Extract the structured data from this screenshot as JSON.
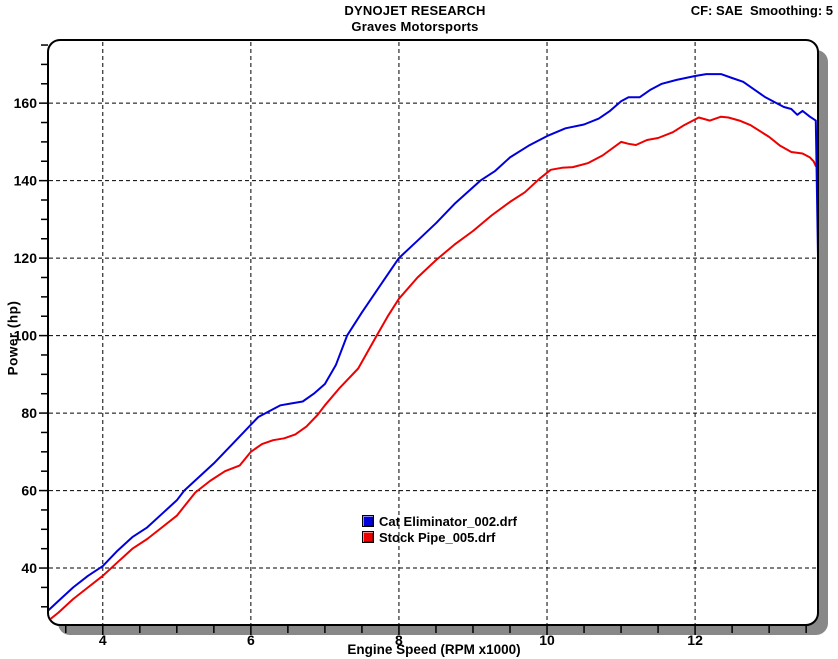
{
  "header": {
    "title": "DYNOJET RESEARCH",
    "subtitle": "Graves Motorsports",
    "correction_note": "CF: SAE  Smoothing: 5"
  },
  "chart_data": {
    "type": "line",
    "title": "DYNOJET RESEARCH",
    "subtitle": "Graves Motorsports",
    "xlabel": "Engine Speed (RPM x1000)",
    "ylabel": "Power (hp)",
    "xlim": [
      3.26,
      13.66
    ],
    "ylim": [
      25.3,
      176.3
    ],
    "x_major_ticks": [
      4,
      6,
      8,
      10,
      12
    ],
    "x_minor_tick_step": 0.5,
    "x_minor_tick_range": [
      3.5,
      13.5
    ],
    "y_major_ticks": [
      40,
      60,
      80,
      100,
      120,
      140,
      160
    ],
    "y_minor_tick_step": 5,
    "y_minor_tick_range": [
      30,
      175
    ],
    "grid": "dashed black lines at major ticks, both axes",
    "legend_position": "inside plot, center-bottom",
    "colors": {
      "background": "#ffffff",
      "frame": "#000000",
      "grid": "#000000",
      "shadow": "#888888",
      "blue_series": "#0000dd",
      "red_series": "#ee0000"
    },
    "series": [
      {
        "name": "Cat Eliminator_002.drf",
        "color": "#0000dd",
        "points": [
          [
            3.26,
            29
          ],
          [
            3.4,
            31.5
          ],
          [
            3.6,
            35
          ],
          [
            3.8,
            38
          ],
          [
            4.0,
            40.5
          ],
          [
            4.2,
            44.5
          ],
          [
            4.4,
            48
          ],
          [
            4.6,
            50.5
          ],
          [
            4.8,
            54
          ],
          [
            5.0,
            57.5
          ],
          [
            5.1,
            60
          ],
          [
            5.3,
            63.5
          ],
          [
            5.5,
            67
          ],
          [
            5.75,
            72
          ],
          [
            6.0,
            77
          ],
          [
            6.1,
            79
          ],
          [
            6.25,
            80.5
          ],
          [
            6.4,
            82
          ],
          [
            6.55,
            82.5
          ],
          [
            6.7,
            83
          ],
          [
            6.85,
            85
          ],
          [
            7.0,
            87.5
          ],
          [
            7.15,
            92.5
          ],
          [
            7.3,
            100
          ],
          [
            7.5,
            106
          ],
          [
            7.75,
            113
          ],
          [
            8.0,
            120
          ],
          [
            8.25,
            124.5
          ],
          [
            8.5,
            129
          ],
          [
            8.75,
            134
          ],
          [
            9.1,
            140
          ],
          [
            9.3,
            142.5
          ],
          [
            9.5,
            146
          ],
          [
            9.75,
            149
          ],
          [
            10.0,
            151.5
          ],
          [
            10.25,
            153.5
          ],
          [
            10.5,
            154.5
          ],
          [
            10.7,
            156
          ],
          [
            10.85,
            158
          ],
          [
            11.0,
            160.5
          ],
          [
            11.1,
            161.5
          ],
          [
            11.25,
            161.5
          ],
          [
            11.4,
            163.5
          ],
          [
            11.55,
            165
          ],
          [
            11.75,
            166
          ],
          [
            12.0,
            167
          ],
          [
            12.15,
            167.5
          ],
          [
            12.35,
            167.5
          ],
          [
            12.5,
            166.5
          ],
          [
            12.65,
            165.5
          ],
          [
            12.8,
            163.5
          ],
          [
            12.95,
            161.5
          ],
          [
            13.1,
            160
          ],
          [
            13.2,
            159
          ],
          [
            13.3,
            158.5
          ],
          [
            13.38,
            157
          ],
          [
            13.45,
            158
          ],
          [
            13.55,
            156.5
          ],
          [
            13.63,
            155.5
          ],
          [
            13.66,
            120.5
          ]
        ]
      },
      {
        "name": "Stock Pipe_005.drf",
        "color": "#ee0000",
        "points": [
          [
            3.27,
            26.5
          ],
          [
            3.4,
            28.5
          ],
          [
            3.6,
            32
          ],
          [
            3.8,
            35
          ],
          [
            4.0,
            38
          ],
          [
            4.2,
            41.5
          ],
          [
            4.4,
            45
          ],
          [
            4.6,
            47.5
          ],
          [
            4.8,
            50.5
          ],
          [
            5.0,
            53.5
          ],
          [
            5.25,
            59.5
          ],
          [
            5.45,
            62.5
          ],
          [
            5.65,
            65
          ],
          [
            5.85,
            66.5
          ],
          [
            6.0,
            70
          ],
          [
            6.15,
            72
          ],
          [
            6.3,
            73
          ],
          [
            6.45,
            73.5
          ],
          [
            6.6,
            74.5
          ],
          [
            6.75,
            76.5
          ],
          [
            6.9,
            79.5
          ],
          [
            7.0,
            82
          ],
          [
            7.2,
            86.5
          ],
          [
            7.45,
            91.5
          ],
          [
            7.7,
            100
          ],
          [
            7.85,
            105
          ],
          [
            8.0,
            109.5
          ],
          [
            8.25,
            115
          ],
          [
            8.5,
            119.5
          ],
          [
            8.75,
            123.5
          ],
          [
            9.0,
            127
          ],
          [
            9.25,
            131
          ],
          [
            9.5,
            134.5
          ],
          [
            9.7,
            137
          ],
          [
            9.9,
            140.5
          ],
          [
            10.05,
            142.8
          ],
          [
            10.2,
            143.3
          ],
          [
            10.35,
            143.5
          ],
          [
            10.55,
            144.5
          ],
          [
            10.75,
            146.5
          ],
          [
            11.0,
            150
          ],
          [
            11.1,
            149.5
          ],
          [
            11.2,
            149.2
          ],
          [
            11.35,
            150.5
          ],
          [
            11.5,
            151
          ],
          [
            11.7,
            152.5
          ],
          [
            11.85,
            154.3
          ],
          [
            12.05,
            156.3
          ],
          [
            12.2,
            155.5
          ],
          [
            12.35,
            156.5
          ],
          [
            12.45,
            156.3
          ],
          [
            12.6,
            155.5
          ],
          [
            12.75,
            154.3
          ],
          [
            12.9,
            152.5
          ],
          [
            13.0,
            151.3
          ],
          [
            13.15,
            149
          ],
          [
            13.3,
            147.4
          ],
          [
            13.45,
            147
          ],
          [
            13.55,
            146
          ],
          [
            13.6,
            145
          ],
          [
            13.63,
            143.8
          ]
        ]
      }
    ]
  }
}
